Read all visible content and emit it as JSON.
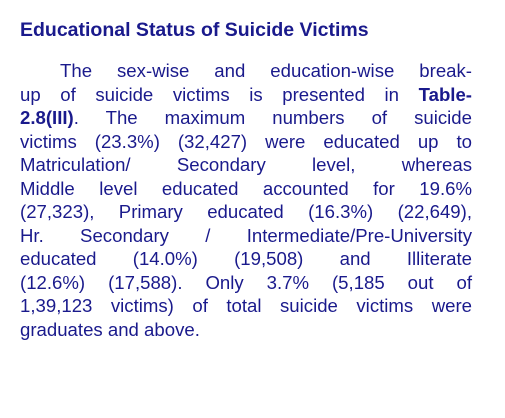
{
  "section": {
    "heading": "Educational Status of Suicide Victims"
  },
  "paragraph": {
    "line_1": "The sex-wise and education-wise break-",
    "line_2_before": "up of suicide victims is presented in ",
    "line_2_ref": "Table-",
    "line_3_ref": "2.8(III)",
    "line_3_after": ". The maximum numbers of suicide",
    "line_4": "victims (23.3%) (32,427) were educated up to",
    "line_5": "Matriculation/ Secondary level, whereas",
    "line_6": "Middle level educated accounted for 19.6%",
    "line_7": "(27,323), Primary educated (16.3%) (22,649),",
    "line_8": "Hr. Secondary / Intermediate/Pre-University",
    "line_9": "educated (14.0%) (19,508) and Illiterate",
    "line_10": "(12.6%) (17,588). Only 3.7% (5,185 out of",
    "line_11": "1,39,123 victims) of total suicide victims were",
    "line_12": "graduates and above."
  },
  "colors": {
    "text": "#1a1a8c",
    "background": "#ffffff"
  }
}
